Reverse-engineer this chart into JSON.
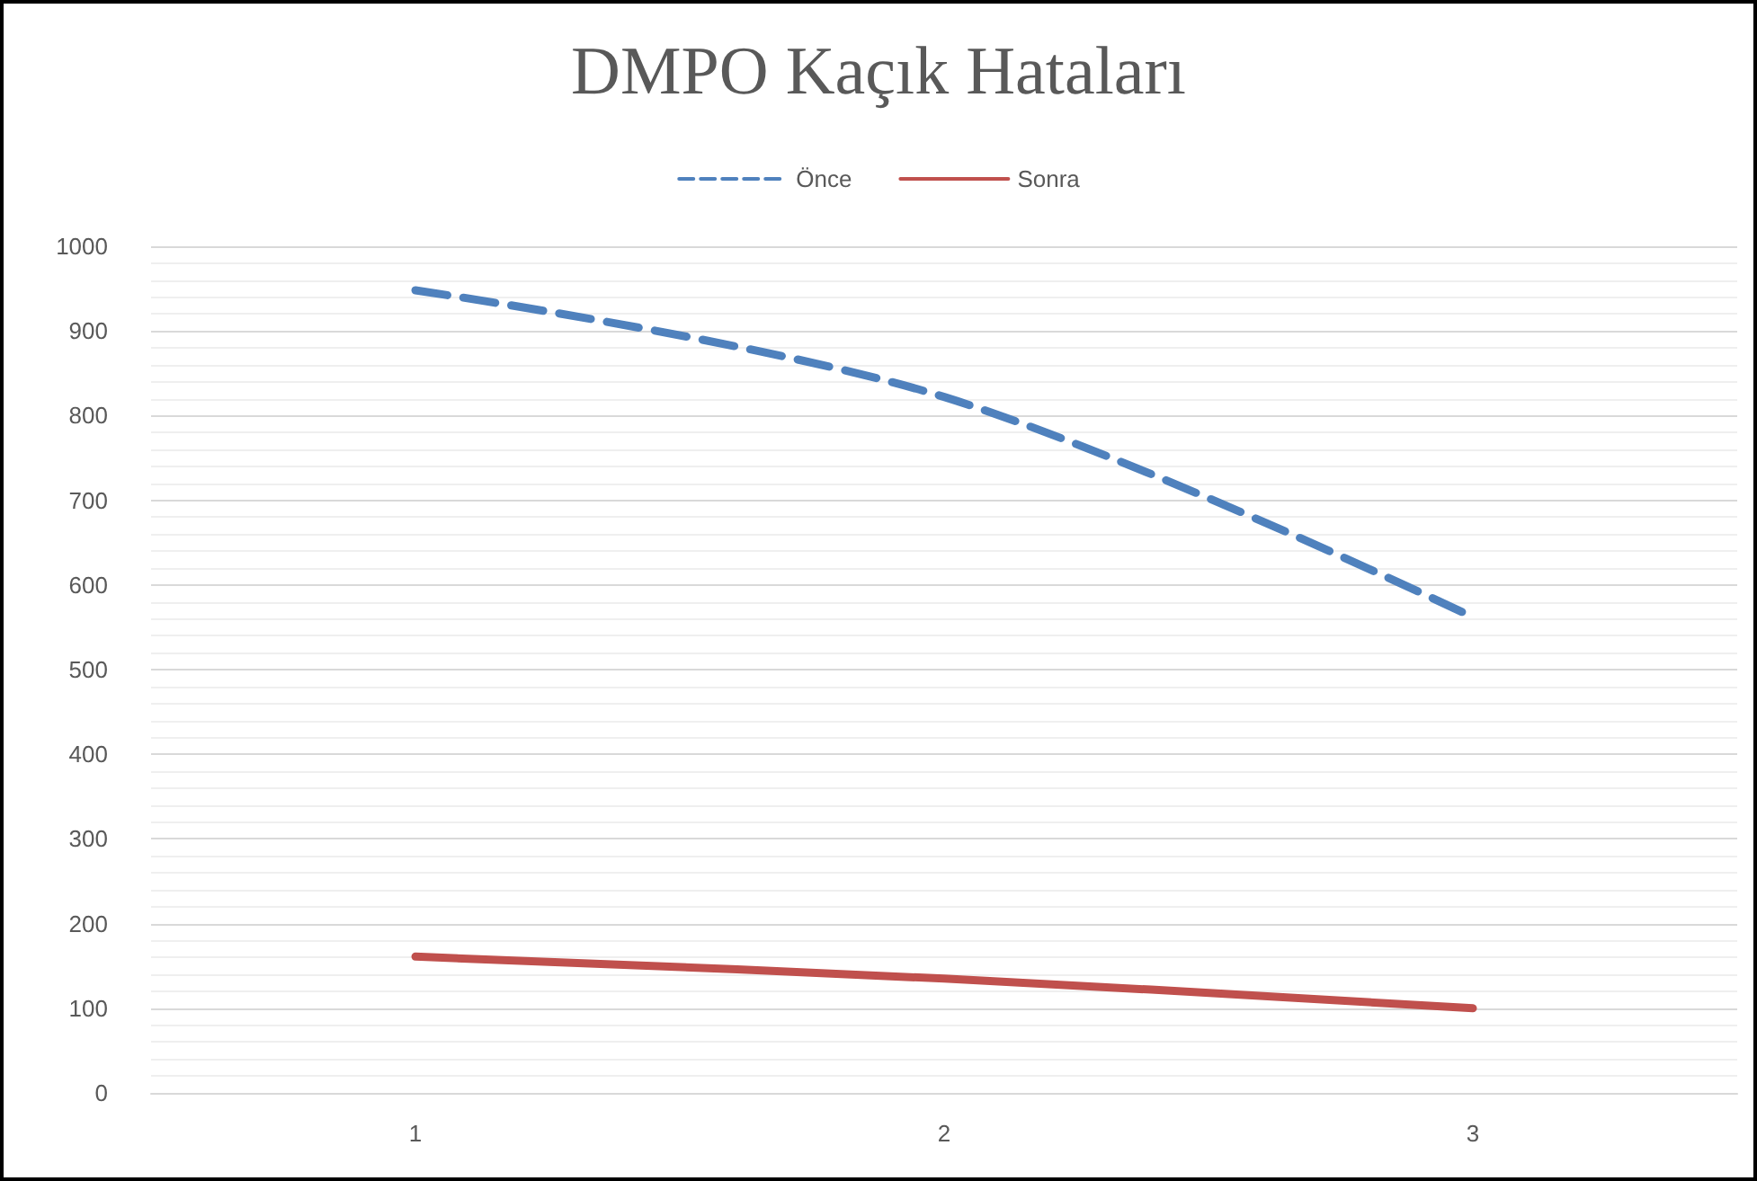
{
  "chart_data": {
    "type": "line",
    "title": "DMPO Kaçık Hataları",
    "categories": [
      "1",
      "2",
      "3"
    ],
    "series": [
      {
        "name": "Önce",
        "color": "#4f81bd",
        "line_style": "dashed",
        "values": [
          948,
          822,
          562
        ]
      },
      {
        "name": "Sonra",
        "color": "#c0504d",
        "line_style": "solid",
        "values": [
          161,
          135,
          100
        ]
      }
    ],
    "ylim": [
      0,
      1000
    ],
    "yticks": [
      0,
      100,
      200,
      300,
      400,
      500,
      600,
      700,
      800,
      900,
      1000
    ],
    "grid": "y",
    "legend": "top",
    "marker": "none"
  }
}
